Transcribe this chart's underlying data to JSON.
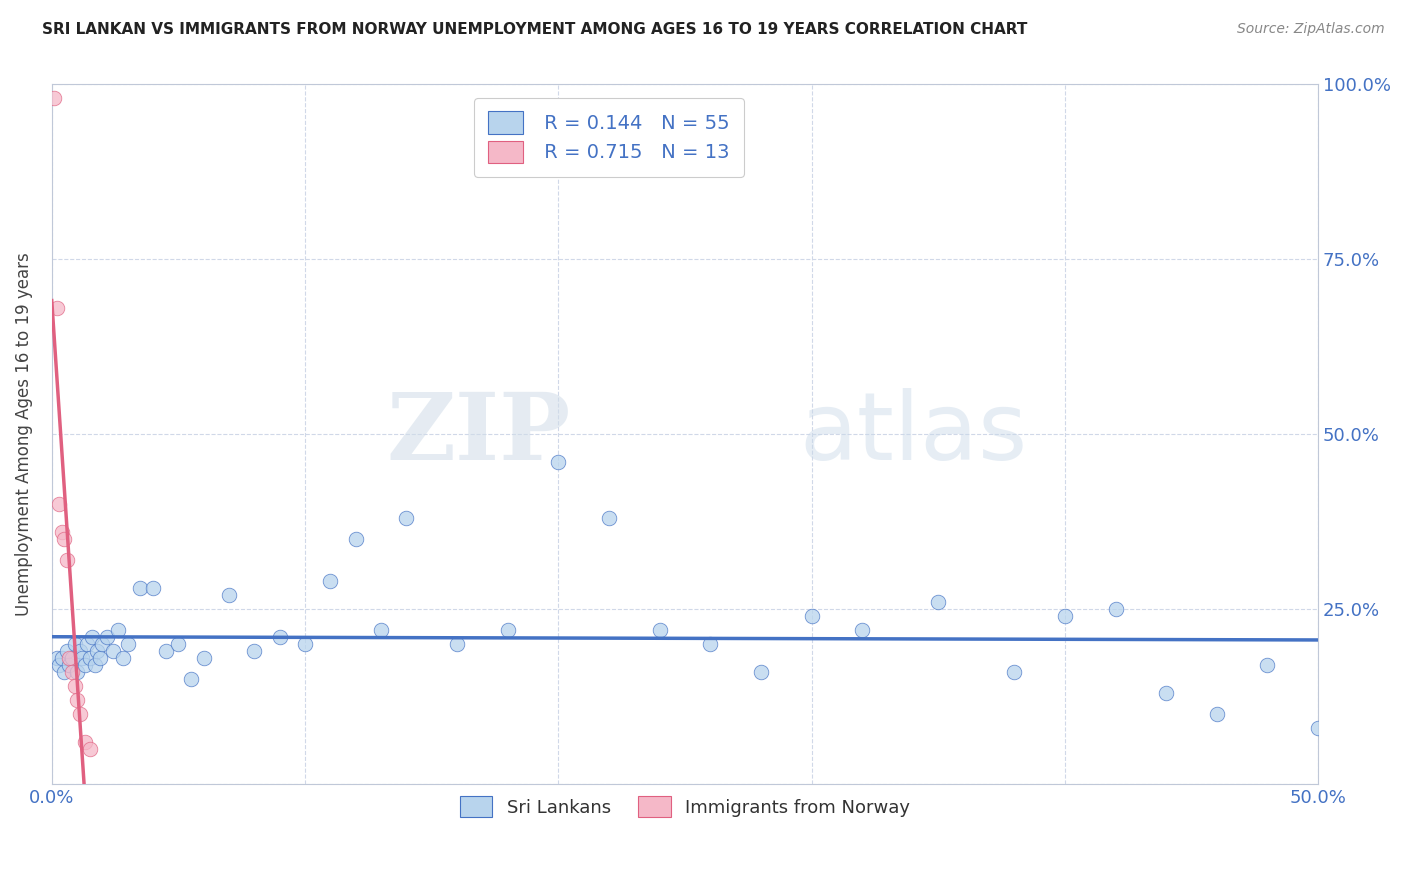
{
  "title": "SRI LANKAN VS IMMIGRANTS FROM NORWAY UNEMPLOYMENT AMONG AGES 16 TO 19 YEARS CORRELATION CHART",
  "source": "Source: ZipAtlas.com",
  "ylabel": "Unemployment Among Ages 16 to 19 years",
  "xlim": [
    0.0,
    0.5
  ],
  "ylim": [
    0.0,
    1.0
  ],
  "xticks": [
    0.0,
    0.1,
    0.2,
    0.3,
    0.4,
    0.5
  ],
  "yticks": [
    0.0,
    0.25,
    0.5,
    0.75,
    1.0
  ],
  "xtick_labels": [
    "0.0%",
    "",
    "",
    "",
    "",
    "50.0%"
  ],
  "ytick_labels_right": [
    "",
    "25.0%",
    "50.0%",
    "75.0%",
    "100.0%"
  ],
  "blue_R": 0.144,
  "blue_N": 55,
  "pink_R": 0.715,
  "pink_N": 13,
  "blue_color": "#b8d4ed",
  "pink_color": "#f5b8c8",
  "blue_line_color": "#4472c4",
  "pink_line_color": "#e06080",
  "legend_text_color": "#4472c4",
  "blue_x": [
    0.002,
    0.003,
    0.004,
    0.005,
    0.006,
    0.007,
    0.008,
    0.009,
    0.01,
    0.011,
    0.012,
    0.013,
    0.014,
    0.015,
    0.016,
    0.017,
    0.018,
    0.019,
    0.02,
    0.022,
    0.024,
    0.026,
    0.028,
    0.03,
    0.035,
    0.04,
    0.045,
    0.05,
    0.055,
    0.06,
    0.07,
    0.08,
    0.09,
    0.1,
    0.11,
    0.12,
    0.13,
    0.14,
    0.16,
    0.18,
    0.2,
    0.22,
    0.24,
    0.26,
    0.28,
    0.3,
    0.32,
    0.35,
    0.38,
    0.4,
    0.42,
    0.44,
    0.46,
    0.48,
    0.5
  ],
  "blue_y": [
    0.18,
    0.17,
    0.18,
    0.16,
    0.19,
    0.17,
    0.18,
    0.2,
    0.16,
    0.19,
    0.18,
    0.17,
    0.2,
    0.18,
    0.21,
    0.17,
    0.19,
    0.18,
    0.2,
    0.21,
    0.19,
    0.22,
    0.18,
    0.2,
    0.28,
    0.28,
    0.19,
    0.2,
    0.15,
    0.18,
    0.27,
    0.19,
    0.21,
    0.2,
    0.29,
    0.35,
    0.22,
    0.38,
    0.2,
    0.22,
    0.46,
    0.38,
    0.22,
    0.2,
    0.16,
    0.24,
    0.22,
    0.26,
    0.16,
    0.24,
    0.25,
    0.13,
    0.1,
    0.17,
    0.08
  ],
  "pink_x": [
    0.001,
    0.002,
    0.003,
    0.004,
    0.005,
    0.006,
    0.007,
    0.008,
    0.009,
    0.01,
    0.011,
    0.013,
    0.015
  ],
  "pink_y": [
    0.98,
    0.68,
    0.4,
    0.36,
    0.35,
    0.32,
    0.18,
    0.16,
    0.14,
    0.12,
    0.1,
    0.06,
    0.05
  ],
  "watermark_zip": "ZIP",
  "watermark_atlas": "atlas",
  "background_color": "#ffffff",
  "grid_color": "#d0d8e8",
  "spine_color": "#c0c8d8"
}
